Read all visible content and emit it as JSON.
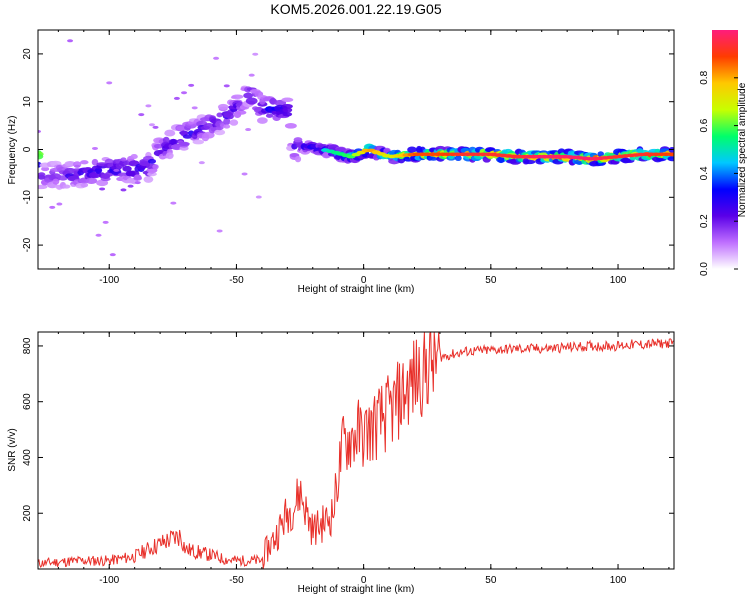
{
  "title": "KOM5.2026.001.22.19.G05",
  "chart_data": [
    {
      "type": "heatmap",
      "xlabel": "Height of straight line (km)",
      "ylabel": "Frequency (Hz)",
      "xlim": [
        -128,
        122
      ],
      "ylim": [
        -25,
        25
      ],
      "xticks": [
        -100,
        -50,
        0,
        50,
        100
      ],
      "yticks": [
        -20,
        -10,
        0,
        10,
        20
      ],
      "colorbar": {
        "label": "Normalized spectral amplitude",
        "range": [
          0,
          1
        ],
        "ticks": [
          0.0,
          0.2,
          0.4,
          0.6,
          0.8
        ],
        "tick_labels": [
          "0.0",
          "0.2",
          "0.4",
          "0.6",
          "0.8"
        ],
        "colors": [
          "#ffffff",
          "#bf6fff",
          "#5a00e8",
          "#0000ff",
          "#00c8ff",
          "#00ff6a",
          "#c8ff00",
          "#ffc800",
          "#ff3c00",
          "#ff1c7c"
        ]
      },
      "ridge": [
        {
          "x": -127,
          "freq": -5.5,
          "amp": 0.2
        },
        {
          "x": -115,
          "freq": -5.5,
          "amp": 0.25
        },
        {
          "x": -105,
          "freq": -4.5,
          "amp": 0.3
        },
        {
          "x": -95,
          "freq": -4,
          "amp": 0.3
        },
        {
          "x": -85,
          "freq": -4,
          "amp": 0.3
        },
        {
          "x": -80,
          "freq": 0,
          "amp": 0.25
        },
        {
          "x": -72,
          "freq": 2.5,
          "amp": 0.3
        },
        {
          "x": -65,
          "freq": 4,
          "amp": 0.25
        },
        {
          "x": -57,
          "freq": 6,
          "amp": 0.25
        },
        {
          "x": -50,
          "freq": 8.5,
          "amp": 0.25
        },
        {
          "x": -45,
          "freq": 12,
          "amp": 0.25
        },
        {
          "x": -40,
          "freq": 8.5,
          "amp": 0.3
        },
        {
          "x": -35,
          "freq": 8.5,
          "amp": 0.35
        },
        {
          "x": -30,
          "freq": 8,
          "amp": 0.3
        },
        {
          "x": -28,
          "freq": 0.5,
          "amp": 0.25
        },
        {
          "x": -20,
          "freq": 0.5,
          "amp": 0.3
        },
        {
          "x": -12,
          "freq": -0.5,
          "amp": 0.45
        },
        {
          "x": -5,
          "freq": -1.5,
          "amp": 0.5
        },
        {
          "x": 2,
          "freq": 0,
          "amp": 0.75
        },
        {
          "x": 10,
          "freq": -1.5,
          "amp": 0.6
        },
        {
          "x": 20,
          "freq": -1,
          "amp": 0.8
        },
        {
          "x": 30,
          "freq": -1,
          "amp": 0.8
        },
        {
          "x": 40,
          "freq": -1,
          "amp": 0.85
        },
        {
          "x": 50,
          "freq": -1,
          "amp": 0.85
        },
        {
          "x": 60,
          "freq": -1.5,
          "amp": 0.85
        },
        {
          "x": 70,
          "freq": -1.5,
          "amp": 0.9
        },
        {
          "x": 80,
          "freq": -1.5,
          "amp": 0.9
        },
        {
          "x": 90,
          "freq": -2,
          "amp": 0.9
        },
        {
          "x": 100,
          "freq": -1.5,
          "amp": 0.85
        },
        {
          "x": 110,
          "freq": -1,
          "amp": 0.85
        },
        {
          "x": 122,
          "freq": -1,
          "amp": 0.8
        }
      ]
    },
    {
      "type": "line",
      "xlabel": "Height of straight line (km)",
      "ylabel": "SNR (v/v)",
      "xlim": [
        -128,
        122
      ],
      "ylim": [
        0,
        850
      ],
      "xticks": [
        -100,
        -50,
        0,
        50,
        100
      ],
      "yticks": [
        200,
        400,
        600,
        800
      ],
      "color": "#e8302a",
      "series": [
        {
          "x": [
            -128,
            -120,
            -110,
            -100,
            -90,
            -85,
            -80,
            -75,
            -72,
            -70,
            -65,
            -60,
            -55,
            -50,
            -45,
            -40,
            -38,
            -35,
            -30,
            -27,
            -25,
            -22,
            -20,
            -15,
            -12,
            -10,
            -8,
            -5,
            -2,
            0,
            5,
            10,
            15,
            20,
            25,
            30,
            35,
            40,
            50,
            60,
            70,
            80,
            90,
            95,
            100,
            105,
            110,
            115,
            122
          ],
          "values": [
            20,
            25,
            30,
            30,
            45,
            70,
            90,
            110,
            120,
            70,
            60,
            50,
            35,
            30,
            30,
            30,
            70,
            110,
            200,
            230,
            280,
            190,
            140,
            170,
            200,
            340,
            450,
            470,
            490,
            480,
            520,
            560,
            620,
            680,
            730,
            760,
            770,
            780,
            785,
            790,
            790,
            795,
            800,
            800,
            800,
            805,
            805,
            808,
            810
          ]
        }
      ]
    }
  ]
}
